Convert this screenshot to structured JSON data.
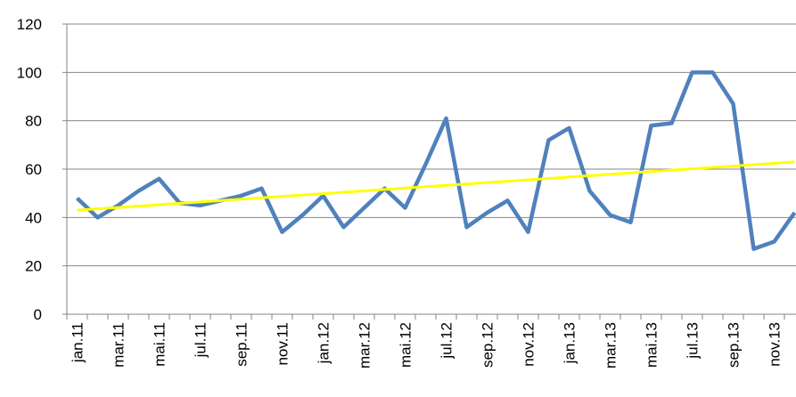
{
  "chart_data": {
    "type": "line",
    "categories": [
      "jan.11",
      null,
      "mar.11",
      null,
      "mai.11",
      null,
      "jul.11",
      null,
      "sep.11",
      null,
      "nov.11",
      null,
      "jan.12",
      null,
      "mar.12",
      null,
      "mai.12",
      null,
      "jul.12",
      null,
      "sep.12",
      null,
      "nov.12",
      null,
      "jan.13",
      null,
      "mar.13",
      null,
      "mai.13",
      null,
      "jul.13",
      null,
      "sep.13",
      null,
      "nov.13",
      null
    ],
    "series": [
      {
        "color": "#4f81bd",
        "values": [
          48,
          40,
          45,
          51,
          56,
          46,
          45,
          47,
          49,
          52,
          34,
          41,
          49,
          36,
          44,
          52,
          44,
          62,
          81,
          36,
          42,
          47,
          34,
          72,
          77,
          51,
          41,
          38,
          78,
          79,
          100,
          100,
          87,
          27,
          30,
          42
        ]
      }
    ],
    "trendline": {
      "color": "#ffff00",
      "values": [
        43,
        63
      ]
    },
    "ylim": [
      0,
      120
    ],
    "yticks": [
      0,
      20,
      40,
      60,
      80,
      100,
      120
    ],
    "grid": true
  }
}
